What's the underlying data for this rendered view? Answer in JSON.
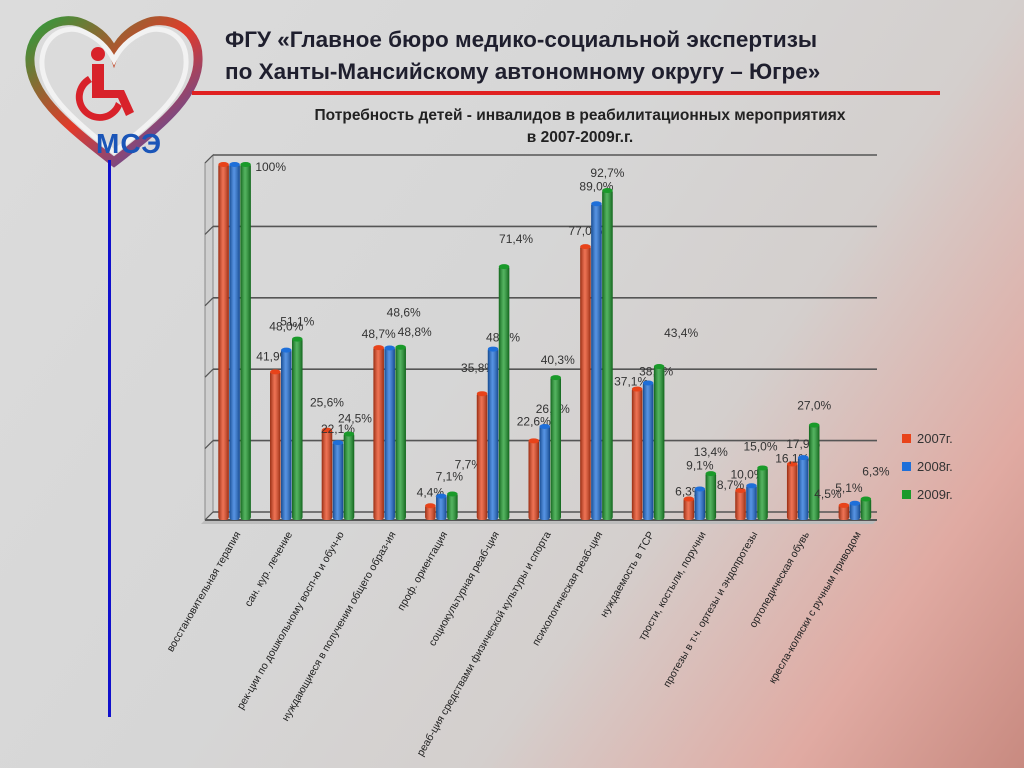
{
  "header": {
    "title_line1": "ФГУ «Главное бюро медико-социальной экспертизы",
    "title_line2": "по Ханты-Мансийскому автономному округу – Югре»",
    "logo_text": "МСЭ"
  },
  "chart_data": {
    "type": "bar",
    "title": "Потребность детей - инвалидов в реабилитационных мероприятиях в 2007-2009г.г.",
    "title_line1": "Потребность детей - инвалидов в реабилитационных мероприятиях",
    "title_line2": "в 2007-2009г.г.",
    "categories": [
      "восстановительная терапия",
      "сан. кур. лечение",
      "рек-ции по дошкольному восп-ю и обуч-ю",
      "нуждающиеся в получении общего образ-ия",
      "проф. ориентация",
      "социокультурная реаб-ция",
      "реаб-ция средствами физической культуры и спорта",
      "психологическая реаб-ция",
      "нуждаемость в ТСР",
      "трости, костыли, поручни",
      "протезы в т.ч. ортезы и эндопротезы",
      "ортопедическая обувь",
      "кресла-коляски с ручным приводом"
    ],
    "series": [
      {
        "name": "2007г.",
        "color": "#e8431a",
        "values": [
          100,
          41.9,
          25.6,
          48.7,
          4.4,
          35.8,
          22.6,
          77.0,
          37.1,
          6.3,
          8.7,
          16.1,
          4.5
        ]
      },
      {
        "name": "2008г.",
        "color": "#1e6fd9",
        "values": [
          100,
          48.0,
          22.1,
          48.6,
          7.1,
          48.3,
          26.6,
          89.0,
          38.8,
          9.1,
          10.0,
          17.9,
          5.1
        ]
      },
      {
        "name": "2009г.",
        "color": "#1a9a2a",
        "values": [
          100,
          51.1,
          24.5,
          48.8,
          7.7,
          71.4,
          40.3,
          92.7,
          43.4,
          13.4,
          15.0,
          27.0,
          6.3
        ]
      }
    ],
    "data_labels": [
      [
        "100%"
      ],
      [
        "41,9%",
        "48,0%",
        "51,1%"
      ],
      [
        "25,6%",
        "22,1%",
        "24,5%"
      ],
      [
        "48,7%",
        "48,6%",
        "48,8%"
      ],
      [
        "4,4%",
        "7,1%",
        "7,7%"
      ],
      [
        "35,8%",
        "48,3%",
        "71,4%"
      ],
      [
        "22,6%",
        "26,6%",
        "40,3%"
      ],
      [
        "77,0%",
        "89,0%",
        "92,7%"
      ],
      [
        "37,1%",
        "38,8%",
        "43,4%"
      ],
      [
        "6,3%",
        "9,1%",
        "13,4%"
      ],
      [
        "8,7%",
        "10,0%",
        "15,0%"
      ],
      [
        "16,1%",
        "17,9%",
        "27,0%"
      ],
      [
        "4,5%",
        "5,1%",
        "6,3%"
      ]
    ],
    "ylim": [
      0,
      100
    ],
    "grid": true,
    "legend_position": "right"
  }
}
